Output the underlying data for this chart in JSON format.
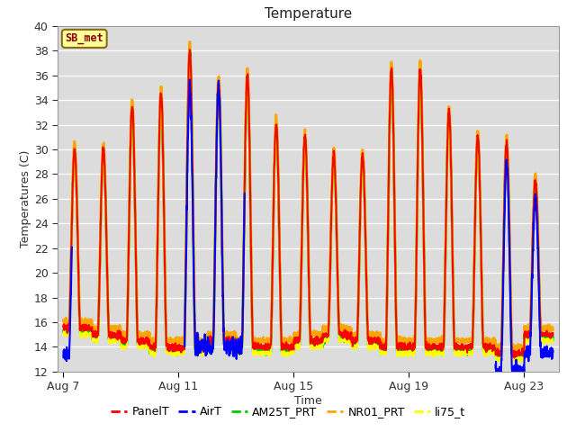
{
  "title": "Temperature",
  "xlabel": "Time",
  "ylabel": "Temperatures (C)",
  "ylim": [
    12,
    40
  ],
  "yticks": [
    12,
    14,
    16,
    18,
    20,
    22,
    24,
    26,
    28,
    30,
    32,
    34,
    36,
    38,
    40
  ],
  "xtick_labels": [
    "Aug 7",
    "Aug 11",
    "Aug 15",
    "Aug 19",
    "Aug 23"
  ],
  "xtick_positions": [
    0,
    4,
    8,
    12,
    16
  ],
  "xlim": [
    -0.2,
    17.2
  ],
  "plot_bg_color": "#dcdcdc",
  "legend_items": [
    "PanelT",
    "AirT",
    "AM25T_PRT",
    "NR01_PRT",
    "li75_t"
  ],
  "legend_colors": [
    "#ff0000",
    "#0000ff",
    "#00cc00",
    "#ffa500",
    "#ffff00"
  ],
  "line_colors": [
    "#ff0000",
    "#0000ff",
    "#00cc00",
    "#ffa500",
    "#ffff00"
  ],
  "annotation_text": "SB_met",
  "annotation_color": "#8b0000",
  "annotation_bg": "#ffff99",
  "annotation_edge": "#8b6914",
  "title_fontsize": 11,
  "label_fontsize": 9,
  "tick_fontsize": 9,
  "grid_color": "#ffffff",
  "linewidth": 1.5
}
